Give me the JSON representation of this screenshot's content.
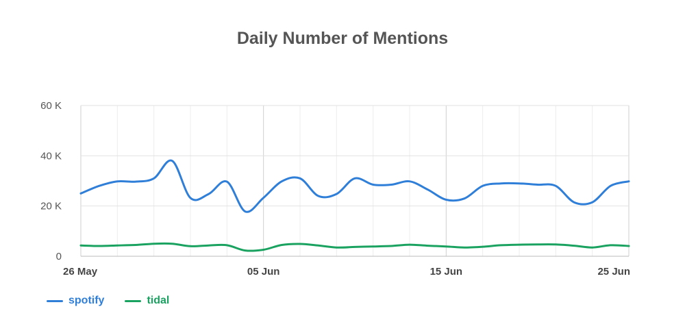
{
  "chart_data": {
    "type": "line",
    "title": "Daily Number of Mentions",
    "xlabel": "",
    "ylabel": "",
    "ylim": [
      0,
      60000
    ],
    "y_ticks": [
      {
        "value": 0,
        "label": "0"
      },
      {
        "value": 20000,
        "label": "20 K"
      },
      {
        "value": 40000,
        "label": "40 K"
      },
      {
        "value": 60000,
        "label": "60 K"
      }
    ],
    "x_ticks": [
      {
        "day": 0,
        "label": "26 May"
      },
      {
        "day": 10,
        "label": "05 Jun"
      },
      {
        "day": 20,
        "label": "15 Jun"
      },
      {
        "day": 30,
        "label": "25 Jun"
      }
    ],
    "x": [
      "26 May",
      "27 May",
      "28 May",
      "29 May",
      "30 May",
      "31 May",
      "01 Jun",
      "02 Jun",
      "03 Jun",
      "04 Jun",
      "05 Jun",
      "06 Jun",
      "07 Jun",
      "08 Jun",
      "09 Jun",
      "10 Jun",
      "11 Jun",
      "12 Jun",
      "13 Jun",
      "14 Jun",
      "15 Jun",
      "16 Jun",
      "17 Jun",
      "18 Jun",
      "19 Jun",
      "20 Jun",
      "21 Jun",
      "22 Jun",
      "23 Jun",
      "24 Jun",
      "25 Jun"
    ],
    "grid": true,
    "legend_position": "bottom-left",
    "series": [
      {
        "name": "spotify",
        "color": "#2f7ed8",
        "values": [
          25000,
          28000,
          29800,
          29700,
          31000,
          38000,
          23200,
          24800,
          29700,
          17800,
          23300,
          29800,
          31000,
          24000,
          24800,
          31000,
          28500,
          28500,
          29800,
          26500,
          22500,
          23000,
          28000,
          29000,
          29000,
          28500,
          28000,
          21500,
          21500,
          28000,
          29800
        ]
      },
      {
        "name": "tidal",
        "color": "#1aa260",
        "values": [
          4300,
          4100,
          4300,
          4500,
          5000,
          5000,
          4000,
          4300,
          4400,
          2300,
          2600,
          4500,
          4900,
          4300,
          3500,
          3700,
          3900,
          4100,
          4600,
          4200,
          3900,
          3500,
          3800,
          4400,
          4600,
          4700,
          4700,
          4200,
          3500,
          4400,
          4100
        ]
      }
    ]
  }
}
